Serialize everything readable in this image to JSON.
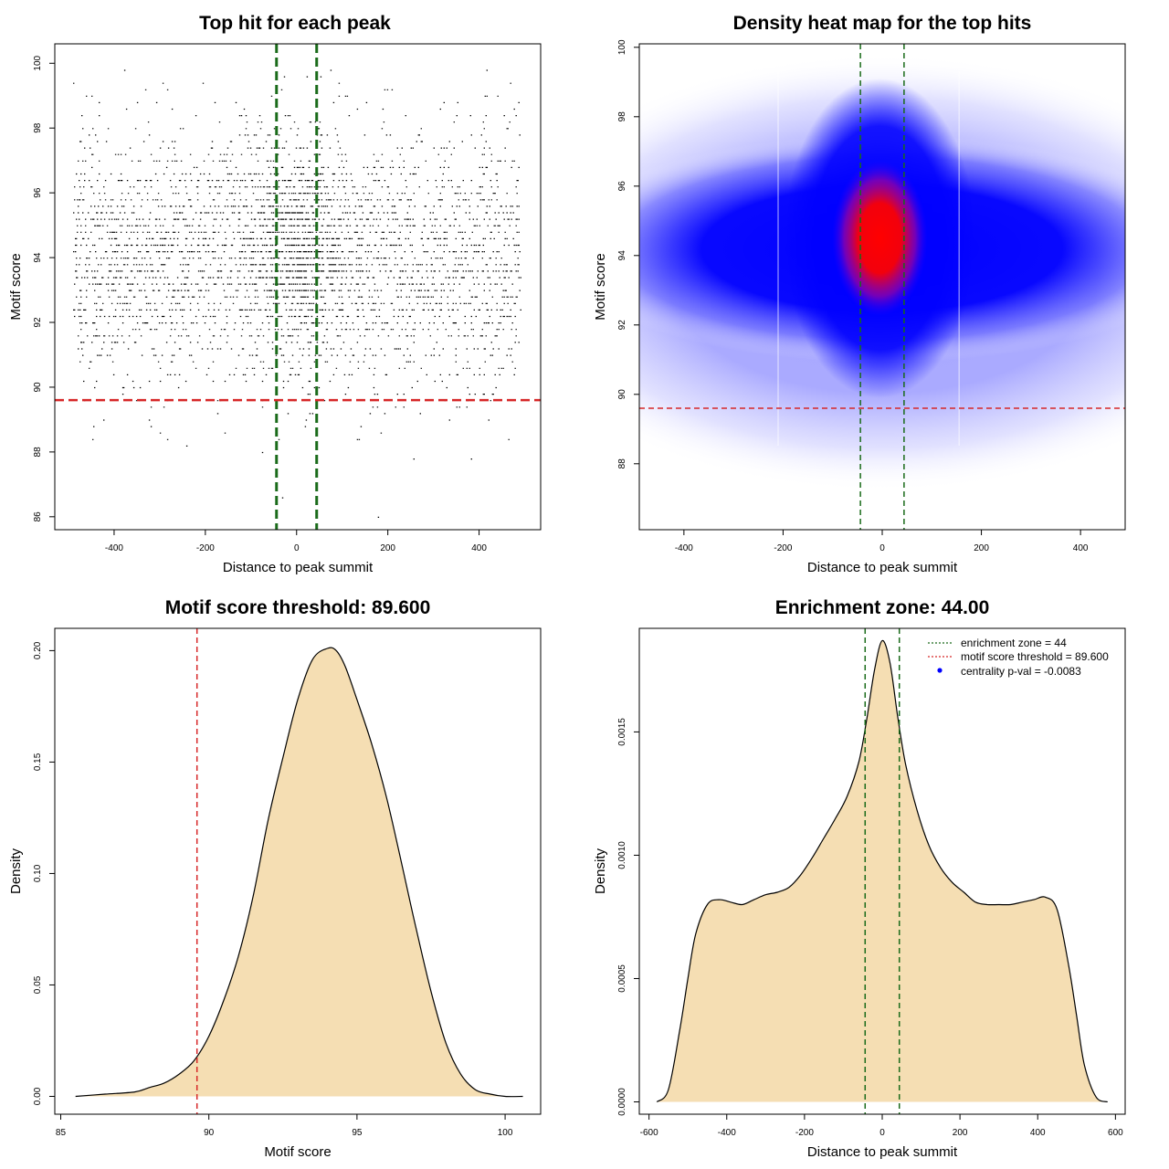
{
  "chart_data": [
    {
      "id": "scatter",
      "type": "scatter",
      "title": "Top hit for each peak",
      "xlabel": "Distance to peak summit",
      "ylabel": "Motif score",
      "xlim": [
        -530,
        535
      ],
      "ylim": [
        85.6,
        100.6
      ],
      "xticks": [
        -400,
        -200,
        0,
        200,
        400
      ],
      "yticks": [
        86,
        88,
        90,
        92,
        94,
        96,
        98,
        100
      ],
      "xtick_labels": [
        "-400",
        "-200",
        "0",
        "200",
        "400"
      ],
      "ytick_labels": [
        "86",
        "88",
        "90",
        "92",
        "94",
        "96",
        "98",
        "100"
      ],
      "point_summary": {
        "x_range": [
          -490,
          490
        ],
        "y_range": [
          86.0,
          99.9
        ],
        "dense_band_y": [
          89,
          98
        ],
        "center_x": 0,
        "center_y": 94.3
      },
      "enrichment_lines_x": [
        -44,
        44
      ],
      "threshold_y": 89.6,
      "line_colors": {
        "enrichment": "#1a6b1a",
        "threshold": "#d62728"
      },
      "point_color": "#000000"
    },
    {
      "id": "heatmap",
      "type": "heatmap",
      "title": "Density heat map for the top hits",
      "xlabel": "Distance to peak summit",
      "ylabel": "Motif score",
      "xlim": [
        -490,
        490
      ],
      "ylim": [
        86.1,
        100.1
      ],
      "xticks": [
        -400,
        -200,
        0,
        200,
        400
      ],
      "yticks": [
        88,
        90,
        92,
        94,
        96,
        98,
        100
      ],
      "xtick_labels": [
        "-400",
        "-200",
        "0",
        "200",
        "400"
      ],
      "ytick_labels": [
        "88",
        "90",
        "92",
        "94",
        "96",
        "98",
        "100"
      ],
      "hotspot": {
        "x": -5,
        "y": 94.5
      },
      "enrichment_lines_x": [
        -44,
        44
      ],
      "threshold_y": 89.6,
      "colors": {
        "low": "#ffffff",
        "mid": "#0000ff",
        "high": "#ff0000",
        "enrichment": "#1a6b1a",
        "threshold": "#d62728"
      }
    },
    {
      "id": "score-density",
      "type": "area",
      "title": "Motif score threshold: 89.600",
      "xlabel": "Motif score",
      "ylabel": "Density",
      "xlim": [
        84.8,
        101.2
      ],
      "ylim": [
        -0.008,
        0.21
      ],
      "xticks": [
        85,
        90,
        95,
        100
      ],
      "yticks": [
        0.0,
        0.05,
        0.1,
        0.15,
        0.2
      ],
      "xtick_labels": [
        "85",
        "90",
        "95",
        "100"
      ],
      "ytick_labels": [
        "0.00",
        "0.05",
        "0.10",
        "0.15",
        "0.20"
      ],
      "x": [
        85.5,
        86.5,
        87.5,
        88.0,
        88.5,
        89.0,
        89.5,
        90.0,
        90.5,
        91.0,
        91.5,
        92.0,
        92.5,
        93.0,
        93.5,
        94.0,
        94.3,
        94.6,
        95.0,
        95.5,
        96.0,
        96.5,
        97.0,
        97.5,
        98.0,
        98.5,
        99.0,
        99.5,
        100.0,
        100.6
      ],
      "values": [
        0.0,
        0.001,
        0.002,
        0.004,
        0.006,
        0.01,
        0.016,
        0.027,
        0.043,
        0.063,
        0.09,
        0.124,
        0.152,
        0.178,
        0.196,
        0.201,
        0.2,
        0.193,
        0.178,
        0.158,
        0.134,
        0.105,
        0.075,
        0.047,
        0.024,
        0.01,
        0.003,
        0.001,
        0.0,
        0.0
      ],
      "threshold_x": 89.6,
      "fill_color": "#f5deb3",
      "line_color": "#000000",
      "threshold_color": "#d62728"
    },
    {
      "id": "distance-density",
      "type": "area",
      "title": "Enrichment zone: 44.00",
      "xlabel": "Distance to peak summit",
      "ylabel": "Density",
      "xlim": [
        -625,
        625
      ],
      "ylim": [
        -5e-05,
        0.00192
      ],
      "xticks": [
        -600,
        -400,
        -200,
        0,
        200,
        400,
        600
      ],
      "yticks": [
        0.0,
        0.0005,
        0.001,
        0.0015
      ],
      "xtick_labels": [
        "-600",
        "-400",
        "-200",
        "0",
        "200",
        "400",
        "600"
      ],
      "ytick_labels": [
        "0.0000",
        "0.0005",
        "0.0010",
        "0.0015"
      ],
      "x": [
        -580,
        -550,
        -520,
        -500,
        -480,
        -450,
        -420,
        -390,
        -360,
        -330,
        -300,
        -270,
        -240,
        -210,
        -180,
        -150,
        -120,
        -90,
        -60,
        -40,
        -20,
        0,
        20,
        40,
        60,
        90,
        120,
        150,
        180,
        210,
        240,
        270,
        300,
        330,
        360,
        390,
        420,
        450,
        480,
        500,
        520,
        550,
        580
      ],
      "values": [
        0.0,
        5e-05,
        0.0003,
        0.0005,
        0.00068,
        0.0008,
        0.00082,
        0.00081,
        0.0008,
        0.00082,
        0.00084,
        0.00085,
        0.00087,
        0.00092,
        0.00099,
        0.00107,
        0.00115,
        0.00124,
        0.00138,
        0.00155,
        0.00175,
        0.00187,
        0.00178,
        0.00156,
        0.00137,
        0.00118,
        0.00104,
        0.00095,
        0.00089,
        0.00085,
        0.00081,
        0.0008,
        0.0008,
        0.0008,
        0.00081,
        0.00082,
        0.00083,
        0.00078,
        0.00055,
        0.00035,
        0.00015,
        2e-05,
        0.0
      ],
      "enrichment_lines_x": [
        -44,
        44
      ],
      "fill_color": "#f5deb3",
      "line_color": "#000000",
      "enrichment_color": "#1a6b1a",
      "legend": {
        "placement": "top-right",
        "entries": [
          {
            "label": "enrichment zone = 44",
            "color": "#1a6b1a",
            "style": "dotted-line"
          },
          {
            "label": "motif score threshold = 89.600",
            "color": "#d62728",
            "style": "dotted-line"
          },
          {
            "label": "centrality p-val = -0.0083",
            "color": "#0000ff",
            "style": "dot"
          }
        ]
      }
    }
  ]
}
